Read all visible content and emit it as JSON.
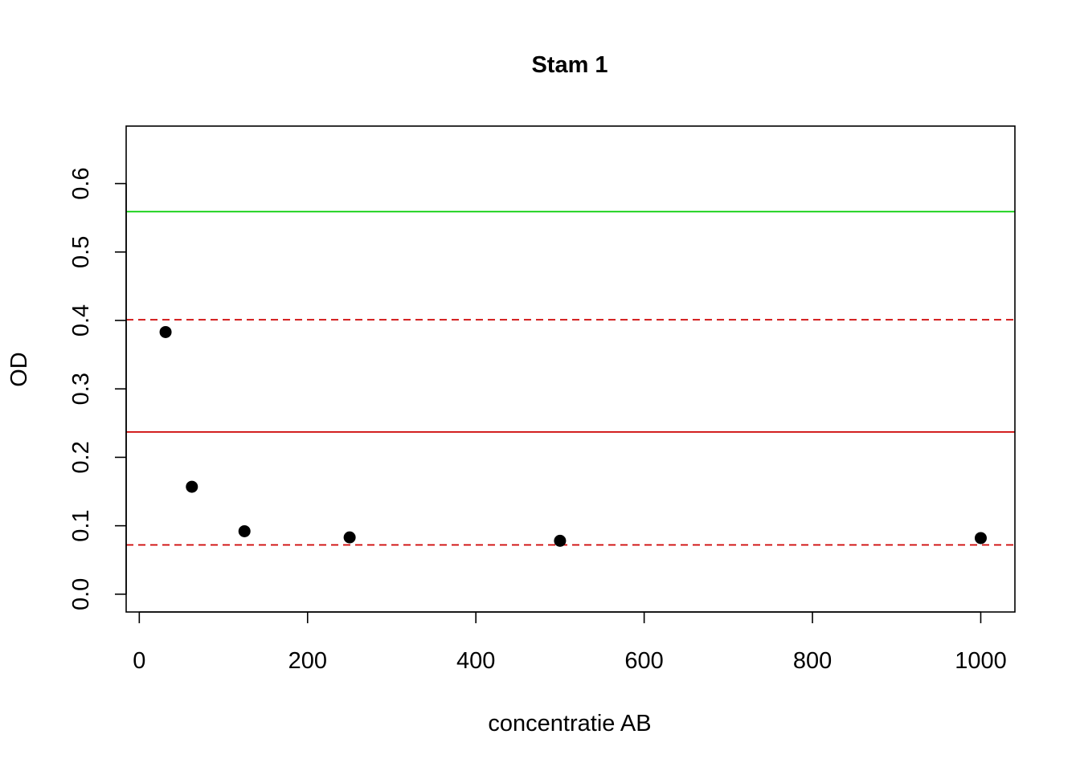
{
  "chart_data": {
    "type": "scatter",
    "title": "Stam 1",
    "xlabel": "concentratie AB",
    "ylabel": "OD",
    "xlim": [
      -15.6,
      1040.6
    ],
    "ylim": [
      -0.026,
      0.684
    ],
    "x_ticks": [
      0,
      200,
      400,
      600,
      800,
      1000
    ],
    "y_ticks": [
      0.0,
      0.1,
      0.2,
      0.3,
      0.4,
      0.5,
      0.6
    ],
    "x_tick_labels": [
      "0",
      "200",
      "400",
      "600",
      "800",
      "1000"
    ],
    "y_tick_labels": [
      "0.0",
      "0.1",
      "0.2",
      "0.3",
      "0.4",
      "0.5",
      "0.6"
    ],
    "grid": false,
    "points": {
      "color": "#000000",
      "x": [
        31.25,
        62.5,
        125,
        250,
        500,
        1000
      ],
      "y": [
        0.383,
        0.157,
        0.092,
        0.083,
        0.078,
        0.082
      ]
    },
    "reference_lines": [
      {
        "y": 0.559,
        "color": "#00cd00",
        "style": "solid"
      },
      {
        "y": 0.401,
        "color": "#cd0000",
        "style": "dashed"
      },
      {
        "y": 0.237,
        "color": "#cd0000",
        "style": "solid"
      },
      {
        "y": 0.072,
        "color": "#cd0000",
        "style": "dashed"
      }
    ]
  }
}
